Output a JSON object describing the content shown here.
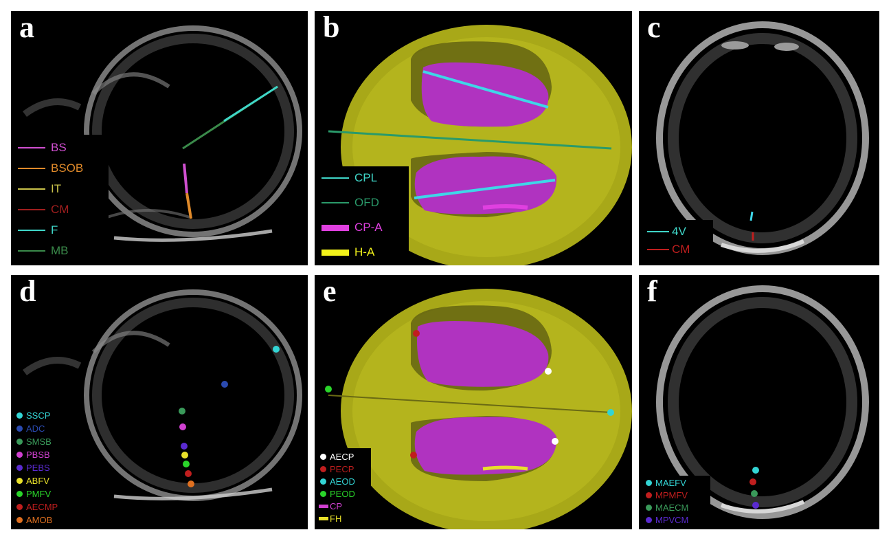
{
  "panels": {
    "a": {
      "label": "a",
      "legend": [
        {
          "text": "BS",
          "color": "#d04fd0"
        },
        {
          "text": "BSOB",
          "color": "#e08a2a"
        },
        {
          "text": "IT",
          "color": "#c9c24a"
        },
        {
          "text": "CM",
          "color": "#a01e1e"
        },
        {
          "text": "F",
          "color": "#3fd6c8"
        },
        {
          "text": "MB",
          "color": "#3a8a4a"
        }
      ]
    },
    "b": {
      "label": "b",
      "legend": [
        {
          "text": "CPL",
          "color": "#3fd6c8"
        },
        {
          "text": "OFD",
          "color": "#2a9a6a"
        },
        {
          "text": "CP-A",
          "color": "#e040e0"
        },
        {
          "text": "H-A",
          "color": "#f2f21a"
        }
      ]
    },
    "c": {
      "label": "c",
      "legend": [
        {
          "text": "4V",
          "color": "#3fd6c8"
        },
        {
          "text": "CM",
          "color": "#c01e1e"
        }
      ]
    },
    "d": {
      "label": "d",
      "legend": [
        {
          "text": "SSCP",
          "color": "#33d4d4"
        },
        {
          "text": "ADC",
          "color": "#2a4ab0"
        },
        {
          "text": "SMSB",
          "color": "#3a9a5a"
        },
        {
          "text": "PBSB",
          "color": "#d040d0"
        },
        {
          "text": "PEBS",
          "color": "#5a2ad0"
        },
        {
          "text": "ABFV",
          "color": "#e8e02a"
        },
        {
          "text": "PMFV",
          "color": "#2ad42a"
        },
        {
          "text": "AECMP",
          "color": "#c01e1e"
        },
        {
          "text": "AMOB",
          "color": "#e07020"
        }
      ]
    },
    "e": {
      "label": "e",
      "legend": [
        {
          "text": "AECP",
          "color": "#ffffff"
        },
        {
          "text": "PECP",
          "color": "#c01e1e"
        },
        {
          "text": "AEOD",
          "color": "#33d4d4"
        },
        {
          "text": "PEOD",
          "color": "#2ad42a"
        },
        {
          "text": "CP",
          "color": "#d040d0"
        },
        {
          "text": "FH",
          "color": "#e8e02a"
        }
      ]
    },
    "f": {
      "label": "f",
      "legend": [
        {
          "text": "MAEFV",
          "color": "#33d4d4"
        },
        {
          "text": "MPMFV",
          "color": "#c01e1e"
        },
        {
          "text": "MAECM",
          "color": "#3a9a5a"
        },
        {
          "text": "MPVCM",
          "color": "#5a2ad0"
        }
      ]
    }
  }
}
